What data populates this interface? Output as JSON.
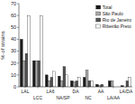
{
  "chart_data": {
    "type": "bar",
    "categories": [
      "LAL",
      "LCC",
      "LA6",
      "NA/SP",
      "DA",
      "NC",
      "AA",
      "LA/AA",
      "LA/DA"
    ],
    "series": [
      {
        "name": "Total",
        "color": "#1a1a1a",
        "values": [
          40,
          22,
          10,
          9,
          5,
          8,
          2,
          5,
          1
        ]
      },
      {
        "name": "São Paulo",
        "color": "#aaaaaa",
        "values": [
          22,
          22,
          5,
          5,
          4,
          14,
          1,
          5,
          0
        ]
      },
      {
        "name": "Rio de Janeiro",
        "color": "#555555",
        "values": [
          28,
          22,
          8,
          17,
          5,
          5,
          2,
          0,
          5
        ]
      },
      {
        "name": "Ribeirão Preto",
        "color": "#ffffff",
        "values": [
          60,
          60,
          13,
          10,
          8,
          5,
          0,
          0,
          8
        ]
      }
    ],
    "ylabel": "% of strains",
    "ylim": [
      0,
      70
    ],
    "yticks": [
      0,
      10,
      20,
      30,
      40,
      50,
      60,
      70
    ],
    "legend": "upper right",
    "grid": false
  }
}
